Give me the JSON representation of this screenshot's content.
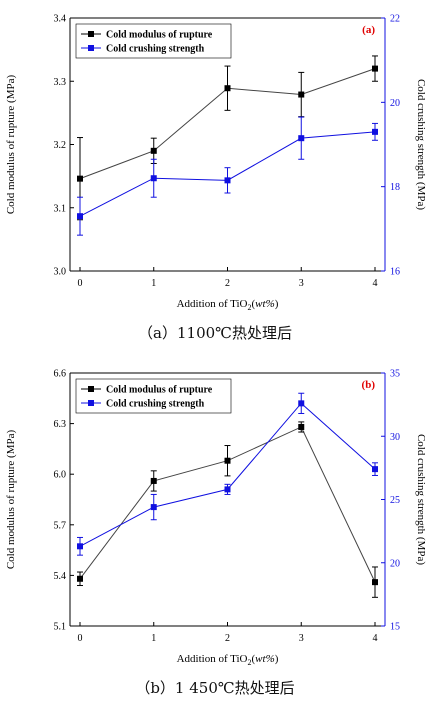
{
  "figure": {
    "caption_a": "（a）1100℃热处理后",
    "caption_b": "（b）1 450℃热处理后"
  },
  "chart_data": [
    {
      "type": "line",
      "panel_label": "(a)",
      "x": [
        0,
        1,
        2,
        3,
        4
      ],
      "xlabel_main": "Addition of TiO",
      "xlabel_sub": "2",
      "xlabel_unit": "wt%",
      "ylabel": "Cold modulus of rupture (MPa)",
      "y2label": "Cold crushing strength (MPa)",
      "ylim": [
        3.0,
        3.4
      ],
      "y2lim": [
        16,
        22
      ],
      "xticks": [
        "0",
        "1",
        "2",
        "3",
        "4"
      ],
      "yticks": [
        "3.0",
        "3.1",
        "3.2",
        "3.3",
        "3.4"
      ],
      "y2ticks": [
        "16",
        "18",
        "20",
        "22"
      ],
      "series": [
        {
          "name": "Cold modulus of rupture",
          "axis": "left",
          "color": "#000000",
          "values": [
            3.146,
            3.19,
            3.289,
            3.279,
            3.32
          ],
          "errors": [
            0.065,
            0.02,
            0.035,
            0.035,
            0.02
          ]
        },
        {
          "name": "Cold crushing strength",
          "axis": "right",
          "color": "#1010e0",
          "values": [
            17.3,
            18.2,
            18.15,
            19.15,
            19.3
          ],
          "errors": [
            0.45,
            0.45,
            0.3,
            0.5,
            0.2
          ]
        }
      ]
    },
    {
      "type": "line",
      "panel_label": "(b)",
      "x": [
        0,
        1,
        2,
        3,
        4
      ],
      "xlabel_main": "Addition of TiO",
      "xlabel_sub": "2",
      "xlabel_unit": "wt%",
      "ylabel": "Cold modulus of rupture (MPa)",
      "y2label": "Cold crushing strength (MPa)",
      "ylim": [
        5.1,
        6.6
      ],
      "y2lim": [
        15,
        35
      ],
      "xticks": [
        "0",
        "1",
        "2",
        "3",
        "4"
      ],
      "yticks": [
        "5.1",
        "5.4",
        "5.7",
        "6.0",
        "6.3",
        "6.6"
      ],
      "y2ticks": [
        "15",
        "20",
        "25",
        "30",
        "35"
      ],
      "series": [
        {
          "name": "Cold modulus of rupture",
          "axis": "left",
          "color": "#000000",
          "values": [
            5.38,
            5.96,
            6.08,
            6.28,
            5.36
          ],
          "errors": [
            0.04,
            0.06,
            0.09,
            0.03,
            0.09
          ]
        },
        {
          "name": "Cold crushing strength",
          "axis": "right",
          "color": "#1010e0",
          "values": [
            21.3,
            24.4,
            25.8,
            32.6,
            27.4
          ],
          "errors": [
            0.7,
            1.0,
            0.4,
            0.8,
            0.5
          ]
        }
      ]
    }
  ]
}
